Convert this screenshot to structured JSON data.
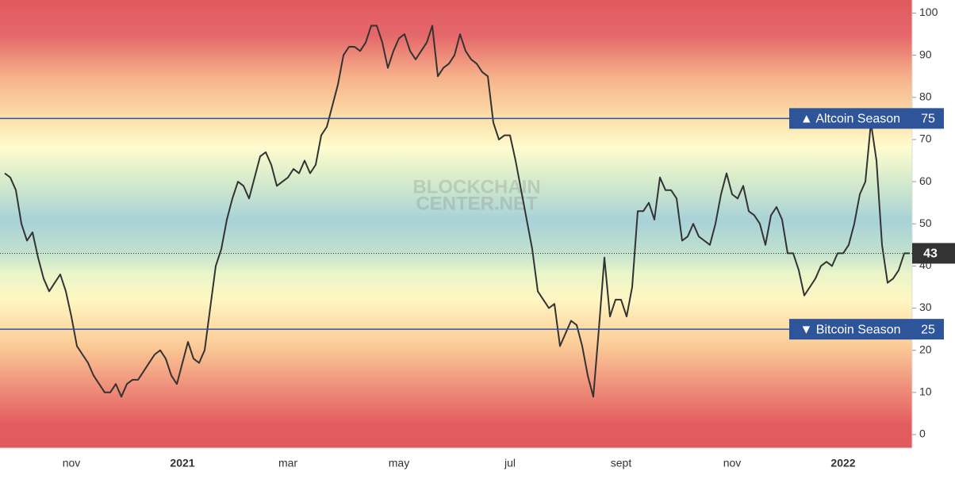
{
  "chart_data": {
    "type": "line",
    "watermark": [
      "BLOCKCHAIN",
      "CENTER.NET"
    ],
    "categories": [
      null,
      null,
      null,
      null,
      null,
      null,
      null,
      null,
      null,
      null,
      null,
      null,
      "nov",
      null,
      null,
      null,
      null,
      null,
      null,
      null,
      null,
      null,
      null,
      null,
      null,
      null,
      null,
      null,
      null,
      null,
      null,
      null,
      "2021",
      null,
      null,
      null,
      null,
      null,
      null,
      null,
      null,
      null,
      null,
      null,
      null,
      null,
      null,
      null,
      null,
      null,
      null,
      "mar",
      null,
      null,
      null,
      null,
      null,
      null,
      null,
      null,
      null,
      null,
      null,
      null,
      null,
      null,
      null,
      null,
      null,
      null,
      null,
      "may",
      null,
      null,
      null,
      null,
      null,
      null,
      null,
      null,
      null,
      null,
      null,
      null,
      null,
      null,
      null,
      null,
      null,
      null,
      null,
      "jul",
      null,
      null,
      null,
      null,
      null,
      null,
      null,
      null,
      null,
      null,
      null,
      null,
      null,
      null,
      null,
      null,
      null,
      null,
      null,
      "sept",
      null,
      null,
      null,
      null,
      null,
      null,
      null,
      null,
      null,
      null,
      null,
      null,
      null,
      null,
      null,
      null,
      null,
      null,
      null,
      "nov",
      null,
      null,
      null,
      null,
      null,
      null,
      null,
      null,
      null,
      null,
      null,
      null,
      null,
      null,
      null,
      null,
      null,
      null,
      null,
      "2022",
      null,
      null,
      null,
      null,
      null,
      null,
      null,
      null,
      null,
      null,
      null,
      null
    ],
    "values": [
      62,
      61,
      58,
      50,
      46,
      48,
      42,
      37,
      34,
      36,
      38,
      34,
      28,
      21,
      19,
      17,
      14,
      12,
      10,
      10,
      12,
      9,
      12,
      13,
      13,
      15,
      17,
      19,
      20,
      18,
      14,
      12,
      17,
      22,
      18,
      17,
      20,
      30,
      40,
      44,
      51,
      56,
      60,
      59,
      56,
      61,
      66,
      67,
      64,
      59,
      60,
      61,
      63,
      62,
      65,
      62,
      64,
      71,
      73,
      78,
      83,
      90,
      92,
      92,
      91,
      93,
      97,
      97,
      93,
      87,
      91,
      94,
      95,
      91,
      89,
      91,
      93,
      97,
      85,
      87,
      88,
      90,
      95,
      91,
      89,
      88,
      86,
      85,
      74,
      70,
      71,
      71,
      65,
      58,
      51,
      44,
      34,
      32,
      30,
      31,
      21,
      24,
      27,
      26,
      21,
      14,
      9,
      25,
      42,
      28,
      32,
      32,
      28,
      35,
      53,
      53,
      55,
      51,
      61,
      58,
      58,
      56,
      46,
      47,
      50,
      47,
      46,
      45,
      50,
      57,
      62,
      57,
      56,
      59,
      53,
      52,
      50,
      45,
      52,
      54,
      51,
      43,
      43,
      39,
      33,
      35,
      37,
      40,
      41,
      40,
      43,
      43,
      45,
      50,
      57,
      60,
      74,
      65,
      45,
      36,
      37,
      39,
      43,
      43
    ],
    "color": "#333333",
    "ylim": [
      -3.2,
      103.1
    ],
    "yticks": [
      0,
      10,
      20,
      30,
      40,
      50,
      60,
      70,
      80,
      90,
      100
    ],
    "reference_lines": [
      {
        "value": 75,
        "label": "▲ Altcoin Season",
        "color": "#2e5599"
      },
      {
        "value": 25,
        "label": "▼ Bitcoin Season",
        "color": "#2e5599"
      }
    ]
  }
}
